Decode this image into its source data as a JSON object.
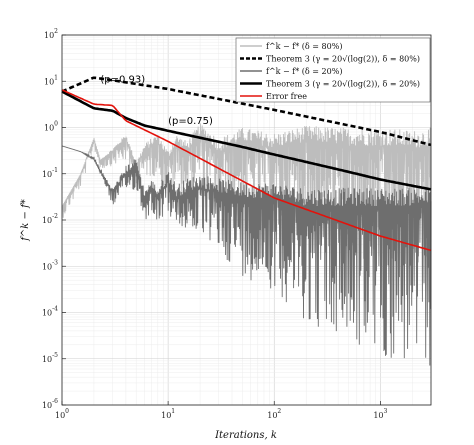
{
  "chart_data": {
    "type": "line",
    "xscale": "log",
    "yscale": "log",
    "xlim": [
      1,
      3000
    ],
    "ylim": [
      1e-06,
      100
    ],
    "xlabel": "Iterations, k",
    "ylabel": "f^k − f*",
    "x_ticks": [
      {
        "base": "10",
        "exp": "0"
      },
      {
        "base": "10",
        "exp": "1"
      },
      {
        "base": "10",
        "exp": "2"
      },
      {
        "base": "10",
        "exp": "3"
      }
    ],
    "y_ticks": [
      {
        "base": "10",
        "exp": "-6"
      },
      {
        "base": "10",
        "exp": "-5"
      },
      {
        "base": "10",
        "exp": "-4"
      },
      {
        "base": "10",
        "exp": "-3"
      },
      {
        "base": "10",
        "exp": "-2"
      },
      {
        "base": "10",
        "exp": "-1"
      },
      {
        "base": "10",
        "exp": "0"
      },
      {
        "base": "10",
        "exp": "1"
      },
      {
        "base": "10",
        "exp": "2"
      }
    ],
    "grid": true,
    "legend_position": "top-right",
    "annotations": [
      {
        "text": "(p=0.93)",
        "x": 2.3,
        "y": 9.5
      },
      {
        "text": "(p=0.75)",
        "x": 10,
        "y": 1.2
      }
    ],
    "series": [
      {
        "name": "f^k − f* (δ = 80%)",
        "color": "#bdbdbd",
        "style": "noisy",
        "x": [
          1,
          1.5,
          2,
          2.3,
          3,
          4,
          5,
          6,
          7,
          8,
          10,
          12,
          15,
          20,
          30,
          50,
          100,
          200,
          500,
          1000,
          2000,
          3000
        ],
        "y": [
          0.02,
          0.1,
          0.6,
          0.2,
          0.3,
          0.6,
          0.15,
          0.3,
          0.4,
          0.5,
          0.2,
          0.45,
          0.3,
          0.7,
          0.3,
          0.5,
          0.35,
          0.5,
          0.4,
          0.4,
          0.35,
          0.4
        ],
        "spread_low": [
          0.5,
          0.5,
          0.6,
          0.6,
          0.5,
          0.3,
          0.3,
          0.3,
          0.2,
          0.2,
          0.15,
          0.12,
          0.1,
          0.08,
          0.05,
          0.03,
          0.02,
          0.01,
          0.003,
          0.002,
          0.002,
          0.002
        ],
        "spread_high": [
          1,
          1,
          1,
          1,
          1.2,
          1.2,
          1.2,
          1.5,
          1.5,
          1.5,
          1.6,
          1.6,
          1.7,
          1.8,
          2,
          2,
          2.2,
          2.2,
          2.5,
          2.5,
          2.5,
          2.5
        ]
      },
      {
        "name": "Theorem 3 (γ = 20√(log(2)), δ = 80%)",
        "color": "#000000",
        "style": "dashed",
        "x": [
          1,
          2,
          3,
          10,
          100,
          1000,
          3000
        ],
        "y": [
          6,
          12,
          10.5,
          6.8,
          2.4,
          0.8,
          0.42
        ]
      },
      {
        "name": "f^k − f* (δ = 20%)",
        "color": "#6e6e6e",
        "style": "noisy",
        "x": [
          1,
          1.5,
          2,
          2.5,
          3,
          4,
          5,
          6,
          7,
          8,
          10,
          12,
          15,
          20,
          30,
          50,
          100,
          200,
          500,
          1000,
          2000,
          3000
        ],
        "y": [
          0.4,
          0.3,
          0.2,
          0.08,
          0.04,
          0.1,
          0.15,
          0.03,
          0.05,
          0.03,
          0.07,
          0.03,
          0.04,
          0.05,
          0.04,
          0.03,
          0.03,
          0.02,
          0.02,
          0.02,
          0.02,
          0.02
        ],
        "spread_low": [
          1,
          1,
          1,
          0.8,
          0.5,
          0.4,
          0.3,
          0.3,
          0.3,
          0.3,
          0.2,
          0.2,
          0.15,
          0.1,
          0.05,
          0.02,
          0.01,
          0.003,
          0.001,
          0.0005,
          0.0003,
          0.0003
        ],
        "spread_high": [
          1,
          1,
          1.2,
          1.2,
          1.2,
          1.5,
          1.5,
          1.5,
          1.5,
          1.8,
          1.8,
          2,
          2,
          2,
          2,
          2.2,
          2.2,
          2.5,
          2.5,
          2.5,
          2.5,
          2.5
        ]
      },
      {
        "name": "Theorem 3 (γ = 20√(log(2)), δ = 20%)",
        "color": "#000000",
        "style": "solid-thick",
        "x": [
          1,
          2,
          3,
          4,
          6,
          10,
          20,
          50,
          100,
          200,
          500,
          1000,
          2000,
          3000
        ],
        "y": [
          6,
          2.6,
          2.3,
          1.6,
          1.1,
          0.85,
          0.6,
          0.38,
          0.26,
          0.18,
          0.11,
          0.075,
          0.055,
          0.046
        ]
      },
      {
        "name": "Error free",
        "color": "#e3120b",
        "style": "solid",
        "x": [
          1,
          2,
          3,
          4,
          10,
          100,
          1000,
          3000
        ],
        "y": [
          6.5,
          3.2,
          3.0,
          1.4,
          0.5,
          0.03,
          0.0045,
          0.0022
        ]
      }
    ]
  }
}
